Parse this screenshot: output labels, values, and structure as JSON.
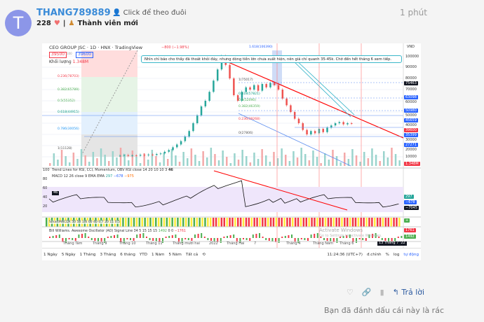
{
  "post": {
    "avatar_letter": "T",
    "username": "THANG789889",
    "follow": "Click để theo đuôi",
    "likes": "228",
    "rank": "Thành viên mới",
    "time": "1 phút"
  },
  "chart": {
    "title": "CEO GROUP JSC · 1D · HNX · TradingView",
    "change": "−800 (−1.98%)",
    "bid": "39500",
    "ask": "39600",
    "spread": "100",
    "volume_label": "Khối lượng",
    "volume_value": "1.348M",
    "note": "Nhìn chỉ báo cho thấy đã thoát khỏi đáy, nhưng dòng tiền lớn chưa xuất hiện, nên giá chỉ quanh 35-45k. Chờ đến hết tháng 6 xem tiếp.",
    "currency": "VND",
    "axis": [
      "100000",
      "90000",
      "80000",
      "70000",
      "60000",
      "50000",
      "40000",
      "30000",
      "20000",
      "10000"
    ],
    "price_tags": [
      {
        "v": "75463",
        "c": "#131722"
      },
      {
        "v": "63098",
        "c": "#2962ff"
      },
      {
        "v": "50980",
        "c": "#2962ff"
      },
      {
        "v": "45659",
        "c": "#2962ff"
      },
      {
        "v": "39600",
        "c": "#f23645"
      },
      {
        "v": "35399",
        "c": "#2962ff"
      },
      {
        "v": "27271",
        "c": "#2962ff"
      },
      {
        "v": "1.348M",
        "c": "#f23645"
      }
    ],
    "fib_left": [
      {
        "l": "0.236(78703)",
        "c": "#f23645"
      },
      {
        "l": "0.382(65789)",
        "c": "#4caf50"
      },
      {
        "l": "0.5(55352)",
        "c": "#4caf50"
      },
      {
        "l": "0.618(44915)",
        "c": "#089981"
      },
      {
        "l": "0.786(30056)",
        "c": "#2196f3"
      },
      {
        "l": "1(11128)",
        "c": "#555"
      }
    ],
    "fib_right": [
      {
        "l": "1(75017)",
        "c": "#555"
      },
      {
        "l": "0.618(57821)",
        "c": "#089981"
      },
      {
        "l": "0.5(52090)",
        "c": "#4caf50"
      },
      {
        "l": "0.382(46359)",
        "c": "#4caf50"
      },
      {
        "l": "0.236(39268)",
        "c": "#f23645"
      },
      {
        "l": "0(27806)",
        "c": "#555"
      }
    ],
    "fib_top": "1.618(106390)",
    "closes": [
      11000,
      11500,
      10800,
      11200,
      11000,
      11800,
      11300,
      12000,
      11600,
      12500,
      13000,
      14500,
      16000,
      18500,
      21000,
      24000,
      28000,
      33000,
      40000,
      47000,
      55000,
      60000,
      68000,
      78000,
      88000,
      100000,
      92000,
      80000,
      65000,
      60000,
      68000,
      72000,
      70000,
      74000,
      69000,
      75000,
      72000,
      76000,
      74000,
      70000,
      62000,
      56000,
      50000,
      44000,
      40000,
      34000,
      30000,
      33000,
      31000,
      35000,
      32000,
      36000,
      38000,
      40000,
      41000,
      39000,
      40000,
      39600
    ],
    "rsi_label": "Trend Lines for RSI, CCI, Momentum, OBV RSI close 14 20 10 10 3",
    "rsi_value": "46",
    "macd_label": "MACD 12 26 close 9 EMA EMA",
    "macd_vals": [
      "297",
      "−678",
      "−975"
    ],
    "rsi_axis": [
      "100",
      "80",
      "60",
      "40",
      "20"
    ],
    "rsi_tags": [
      "297",
      "−678",
      "−7045"
    ],
    "smart_label": "SmartMACDX 50 50 1/6 00 40 0.7 20 11 0.5",
    "ao_label": "Bill Williams. Awesome Oscillator (AO) Signal Line 34 5 15 15 15",
    "ao_vals": [
      "1492",
      "0",
      "0",
      "−1761"
    ],
    "ao_tags": [
      "1761",
      "1492"
    ],
    "watermark": [
      "Activate Windows",
      "Go to Settings to activate Windows."
    ],
    "time_labels": [
      "Tháng Tám",
      "Tháng 9",
      "Tháng 10",
      "Tháng 11",
      "Tháng mười hai",
      "2022",
      "Tháng Hai",
      "7",
      "Tháng 4",
      "Tháng Năm",
      "Tháng 6"
    ],
    "time_cursor": "13 Tháng 7 '22",
    "ranges": [
      "1 Ngày",
      "5 Ngày",
      "1 Tháng",
      "3 Tháng",
      "6 tháng",
      "YTD",
      "1 Năm",
      "5 Năm",
      "Tất cả"
    ],
    "clock": "11:24:36 (UTC+7)",
    "adjust": "đ.chỉnh",
    "percent": "%",
    "log": "log",
    "auto": "tự động"
  },
  "actions": {
    "reply": "Trả lời",
    "flagged": "Bạn đã đánh dấu cái này là rác"
  }
}
